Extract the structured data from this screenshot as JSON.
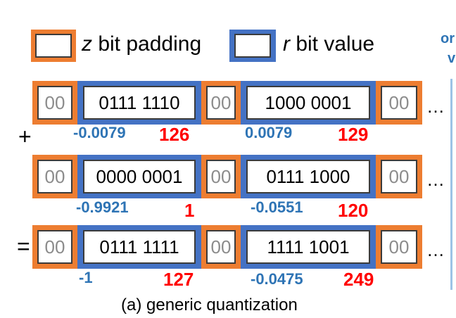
{
  "legend": {
    "padding_var": "z",
    "padding_label": " bit padding",
    "value_var": "r",
    "value_label": " bit value"
  },
  "corner": {
    "line1": "or",
    "line2": "v"
  },
  "operators": {
    "plus": "+",
    "equals": "="
  },
  "ellipsis": "…",
  "rows": [
    {
      "pads": [
        "00",
        "00",
        "00"
      ],
      "values": [
        "0111 1110",
        "1000 0001"
      ],
      "float_labels": [
        "-0.0079",
        "0.0079"
      ],
      "int_labels": [
        "126",
        "129"
      ]
    },
    {
      "pads": [
        "00",
        "00",
        "00"
      ],
      "values": [
        "0000 0001",
        "0111 1000"
      ],
      "float_labels": [
        "-0.9921",
        "-0.0551"
      ],
      "int_labels": [
        "1",
        "120"
      ]
    },
    {
      "pads": [
        "00",
        "00",
        "00"
      ],
      "values": [
        "0111 1111",
        "1111 1001"
      ],
      "float_labels": [
        "-1",
        "-0.0475"
      ],
      "int_labels": [
        "127",
        "249"
      ]
    }
  ],
  "caption": "(a) generic quantization",
  "colors": {
    "padding": "#ed7d31",
    "value": "#4472c4",
    "float": "#2e74b5",
    "int": "#ff0000"
  }
}
